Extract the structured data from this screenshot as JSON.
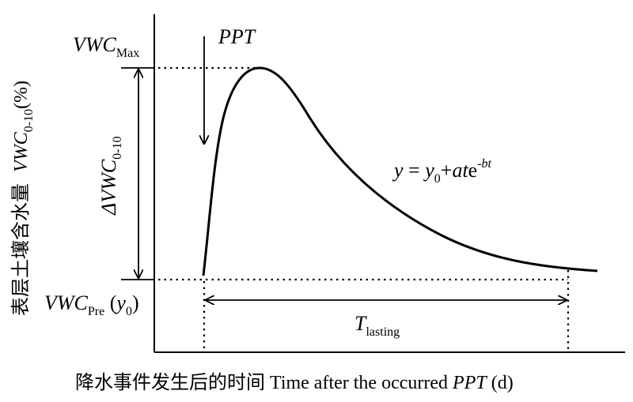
{
  "labels": {
    "vwc_max_main": "VWC",
    "vwc_max_sub": "Max",
    "ppt": "PPT",
    "delta_main": "ΔVWC",
    "delta_sub": "0-10",
    "equation": {
      "y": "y",
      "eq": " = ",
      "y0_main": "y",
      "y0_sub": "0",
      "plus_a": "+",
      "a": "a",
      "t": "t",
      "e": "e",
      "exponent": "-bt"
    },
    "vwc_pre_main": "VWC",
    "vwc_pre_sub": "Pre",
    "vwc_pre_paren_open": " (",
    "vwc_pre_y": "y",
    "vwc_pre_y_sub": "0",
    "vwc_pre_paren_close": ")",
    "t_lasting_main": "T",
    "t_lasting_sub": "lasting"
  },
  "y_axis_label": {
    "chinese": "表层土壤含水量",
    "vwc": "VWC",
    "sub": "0-10",
    "unit": "(%)"
  },
  "x_axis_label": {
    "chinese": "降水事件发生后的时间",
    "english_pre": " Time after the occurred ",
    "ppt": "PPT",
    "english_post": " (d)"
  },
  "colors": {
    "ink": "#000000",
    "background": "#ffffff"
  }
}
